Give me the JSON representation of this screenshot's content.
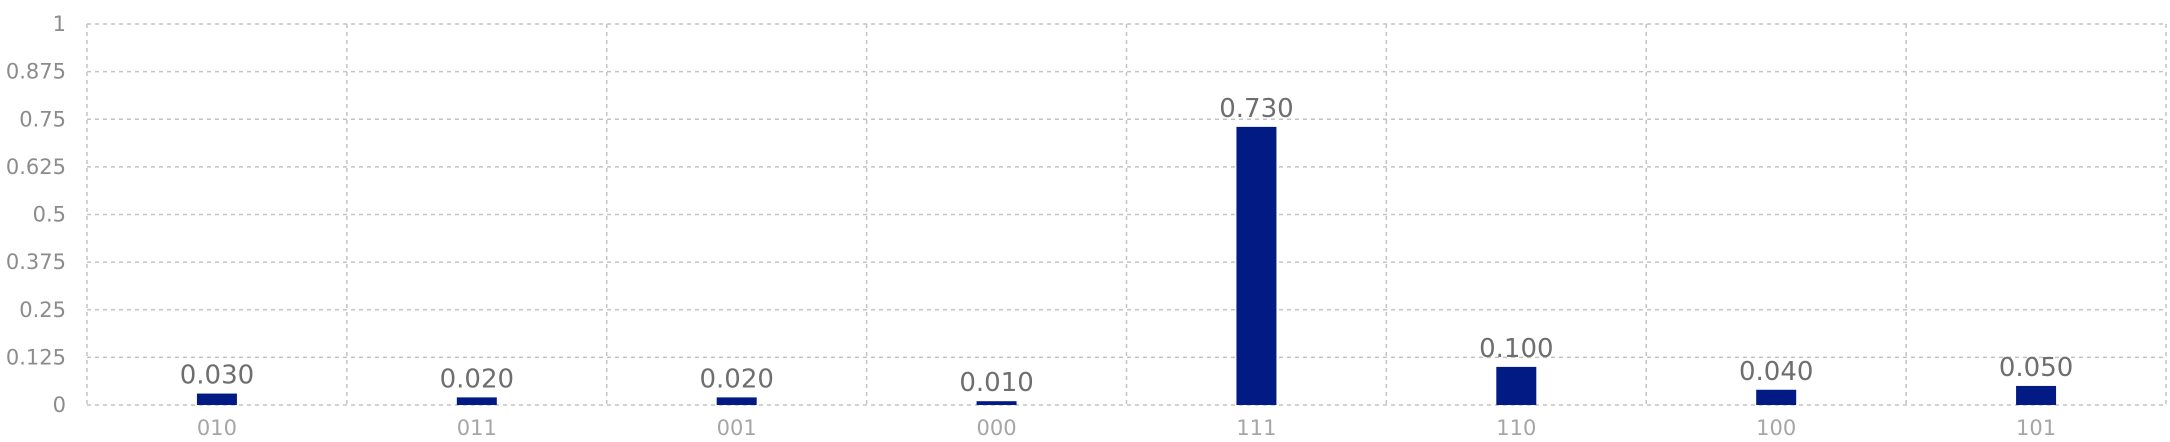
{
  "chart_data": {
    "type": "bar",
    "categories": [
      "010",
      "011",
      "001",
      "000",
      "111",
      "110",
      "100",
      "101"
    ],
    "values": [
      0.03,
      0.02,
      0.02,
      0.01,
      0.73,
      0.1,
      0.04,
      0.05
    ],
    "data_labels": [
      "0.030",
      "0.020",
      "0.020",
      "0.010",
      "0.730",
      "0.100",
      "0.040",
      "0.050"
    ],
    "y_ticks": [
      "0",
      "0.125",
      "0.25",
      "0.375",
      "0.5",
      "0.625",
      "0.75",
      "0.875",
      "1"
    ],
    "ylim": [
      0,
      1
    ],
    "grid": true,
    "bar_color": "#021b84",
    "title": "",
    "xlabel": "",
    "ylabel": ""
  }
}
